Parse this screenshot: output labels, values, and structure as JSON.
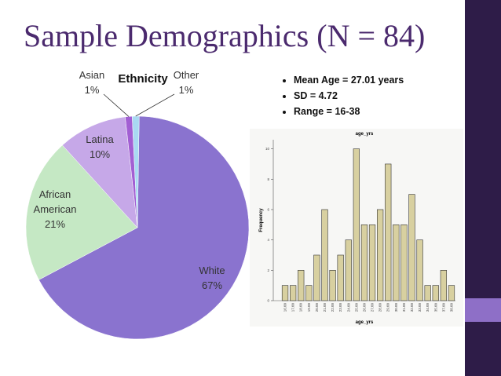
{
  "title": "Sample Demographics (N = 84)",
  "bullets": [
    "Mean Age = 27.01 years",
    "SD = 4.72",
    "Range = 16-38"
  ],
  "chart_data": [
    {
      "type": "pie",
      "title": "Ethnicity",
      "categories": [
        "White",
        "African American",
        "Latina",
        "Asian",
        "Other"
      ],
      "values": [
        67,
        21,
        10,
        1,
        1
      ],
      "value_labels": [
        "67%",
        "21%",
        "10%",
        "1%",
        "1%"
      ],
      "colors": [
        "#8a73cf",
        "#c5e8c4",
        "#c6a8e8",
        "#a25fd3",
        "#a9d9f2"
      ]
    },
    {
      "type": "bar",
      "title": "age_yrs",
      "x_label": "age_yrs",
      "y_label": "Frequency",
      "categories": [
        "16.00",
        "17.00",
        "18.00",
        "19.00",
        "20.00",
        "21.00",
        "22.00",
        "23.00",
        "24.00",
        "25.00",
        "26.00",
        "27.00",
        "28.00",
        "29.00",
        "30.00",
        "31.00",
        "32.00",
        "33.00",
        "34.00",
        "35.00",
        "37.00",
        "38.00"
      ],
      "values": [
        1,
        1,
        2,
        1,
        3,
        6,
        2,
        3,
        4,
        10,
        5,
        5,
        6,
        9,
        5,
        5,
        7,
        4,
        1,
        1,
        2,
        1
      ],
      "color": "#d8d0a0",
      "ylim": [
        0,
        10.6
      ],
      "yticks": [
        0,
        2,
        4,
        6,
        8,
        10
      ]
    }
  ]
}
